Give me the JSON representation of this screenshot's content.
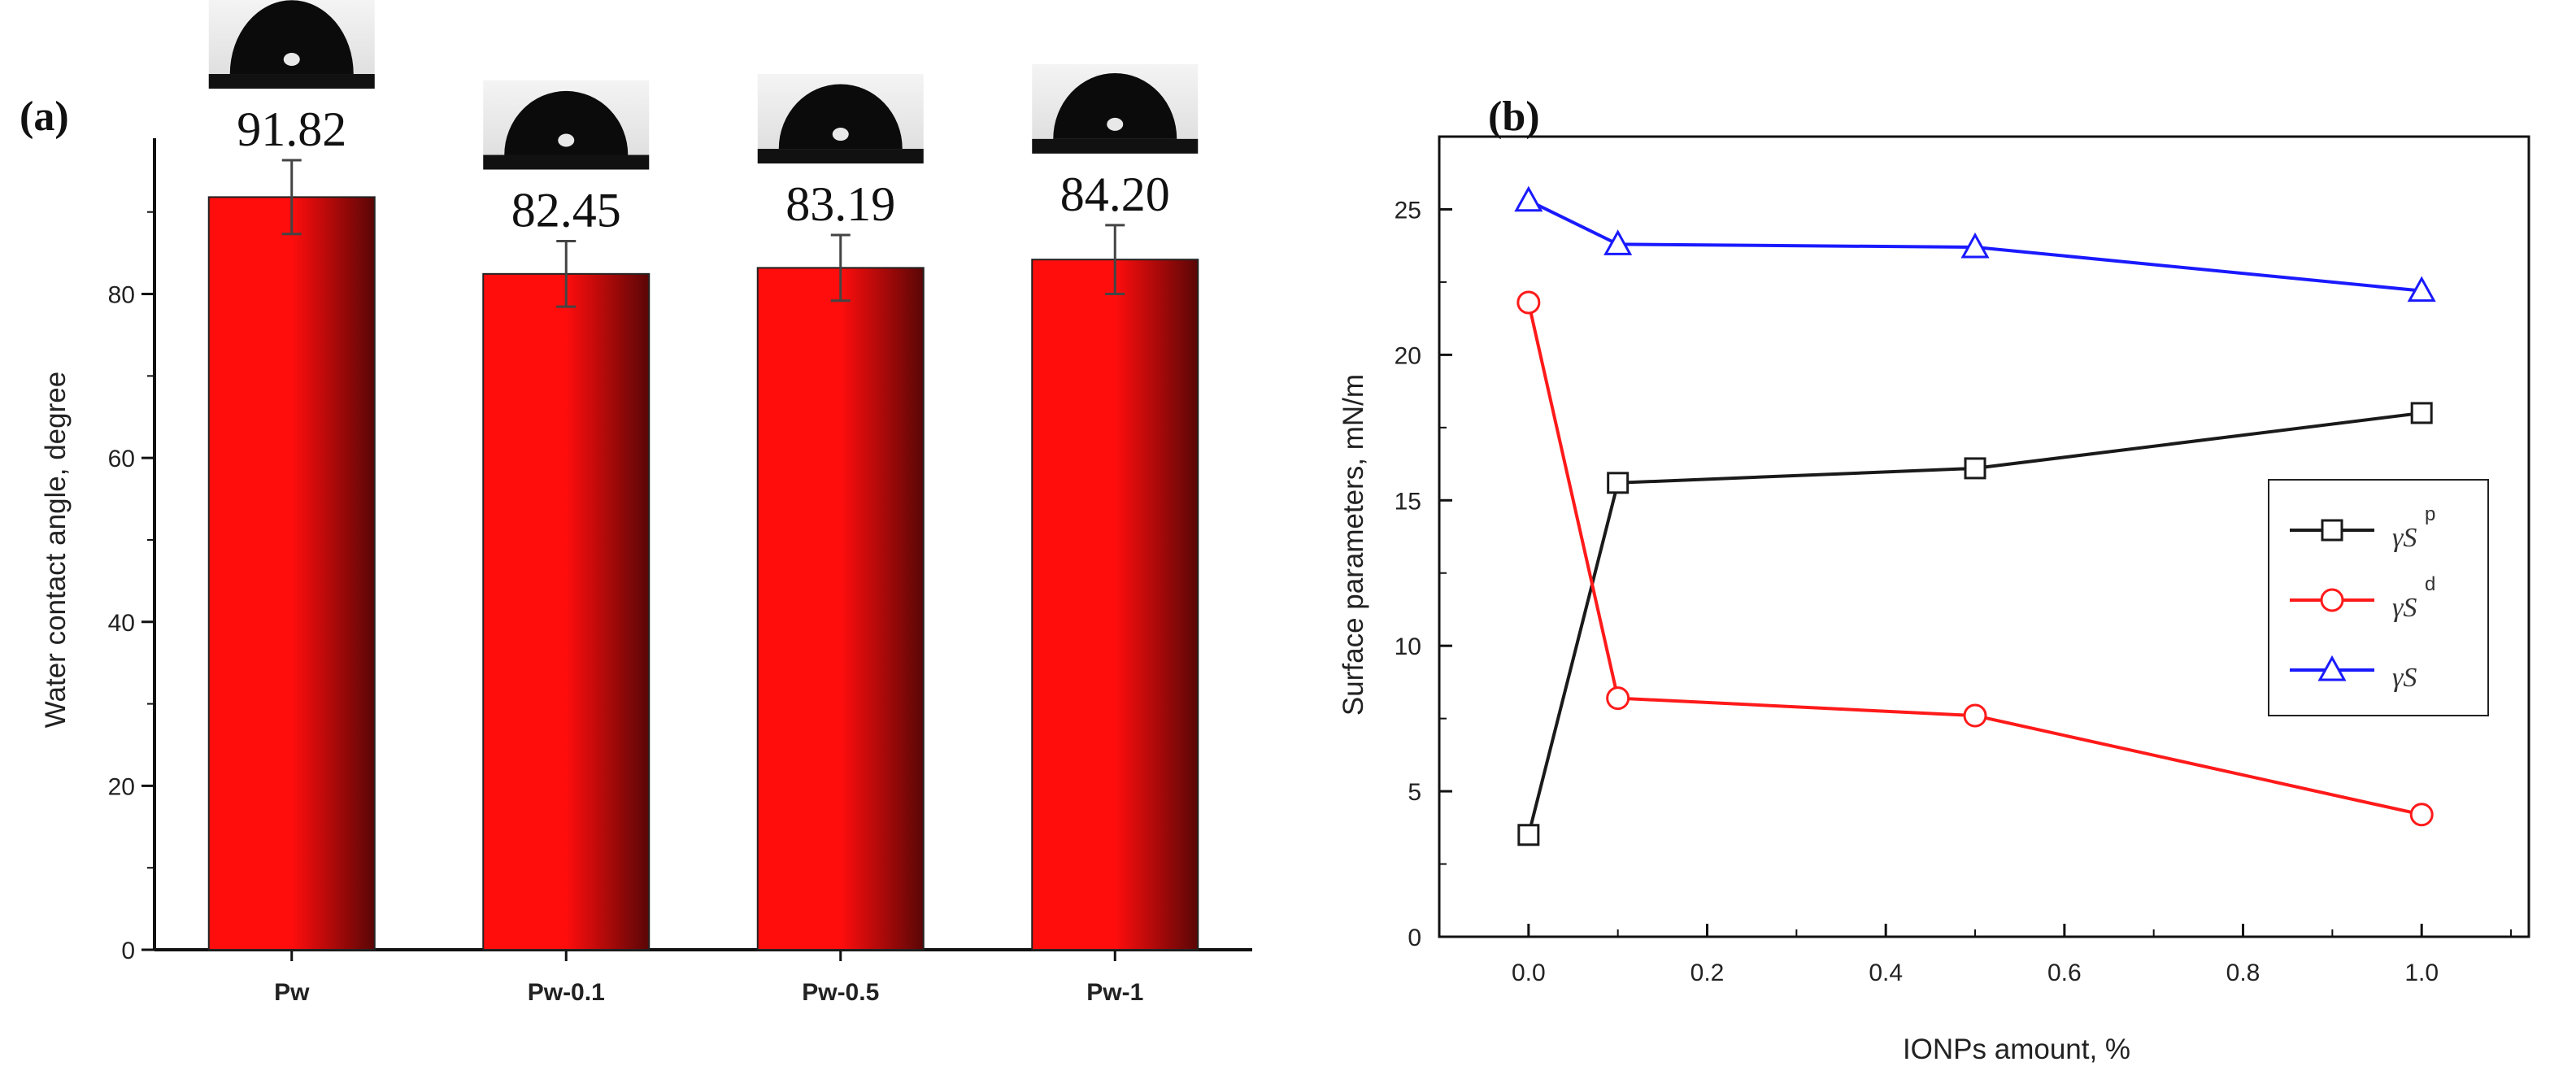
{
  "chart_data": [
    {
      "panel": "(a)",
      "type": "bar",
      "categories": [
        "Pw",
        "Pw-0.1",
        "Pw-0.5",
        "Pw-1"
      ],
      "values": [
        91.82,
        82.45,
        83.19,
        84.2
      ],
      "value_labels": [
        "91.82",
        "82.45",
        "83.19",
        "84.20"
      ],
      "errors": [
        4.5,
        4.0,
        4.0,
        4.2
      ],
      "ylabel": "Water contact angle, degree",
      "xlabel": "",
      "ylim": [
        0,
        99
      ],
      "yticks": [
        0,
        20,
        40,
        60,
        80
      ],
      "bar_color": "#ff0d0d",
      "bar_shadow_color": "#5a0606",
      "insets": "water droplet photo above each bar"
    },
    {
      "panel": "(b)",
      "type": "line",
      "xlabel": "IONPs amount, %",
      "ylabel": "Surface parameters, mN/m",
      "xlim": [
        -0.1,
        1.12
      ],
      "ylim": [
        0,
        27.5
      ],
      "xticks": [
        "0.0",
        "0.2",
        "0.4",
        "0.6",
        "0.8",
        "1.0"
      ],
      "yticks": [
        "0",
        "5",
        "10",
        "15",
        "20",
        "25"
      ],
      "x": [
        0.0,
        0.1,
        0.5,
        1.0
      ],
      "series": [
        {
          "name": "γS",
          "superscript": "p",
          "marker": "square",
          "color": "#1a1a1a",
          "values": [
            3.5,
            15.6,
            16.1,
            18.0
          ]
        },
        {
          "name": "γS",
          "superscript": "d",
          "marker": "circle",
          "color": "#ff1a1a",
          "values": [
            21.8,
            8.2,
            7.6,
            4.2
          ]
        },
        {
          "name": "γS",
          "superscript": "",
          "marker": "triangle",
          "color": "#1a1aff",
          "values": [
            25.3,
            23.8,
            23.7,
            22.2
          ]
        }
      ],
      "legend_position": "right"
    }
  ]
}
